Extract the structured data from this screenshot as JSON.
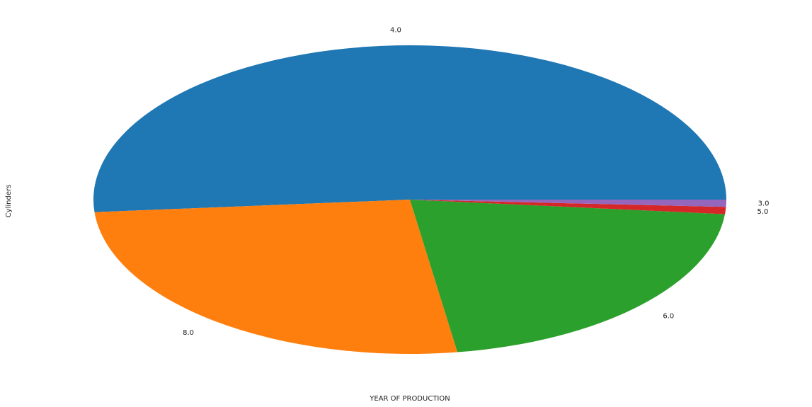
{
  "chart_data": {
    "type": "pie",
    "xlabel": "YEAR OF PRODUCTION",
    "ylabel": "Cylinders",
    "slices": [
      {
        "label": "4.0",
        "value": 51.3,
        "color": "#1f77b4"
      },
      {
        "label": "8.0",
        "value": 26.1,
        "color": "#ff7f0e"
      },
      {
        "label": "6.0",
        "value": 21.1,
        "color": "#2ca02c"
      },
      {
        "label": "5.0",
        "value": 0.75,
        "color": "#d62728"
      },
      {
        "label": "3.0",
        "value": 0.75,
        "color": "#9467bd"
      }
    ]
  }
}
